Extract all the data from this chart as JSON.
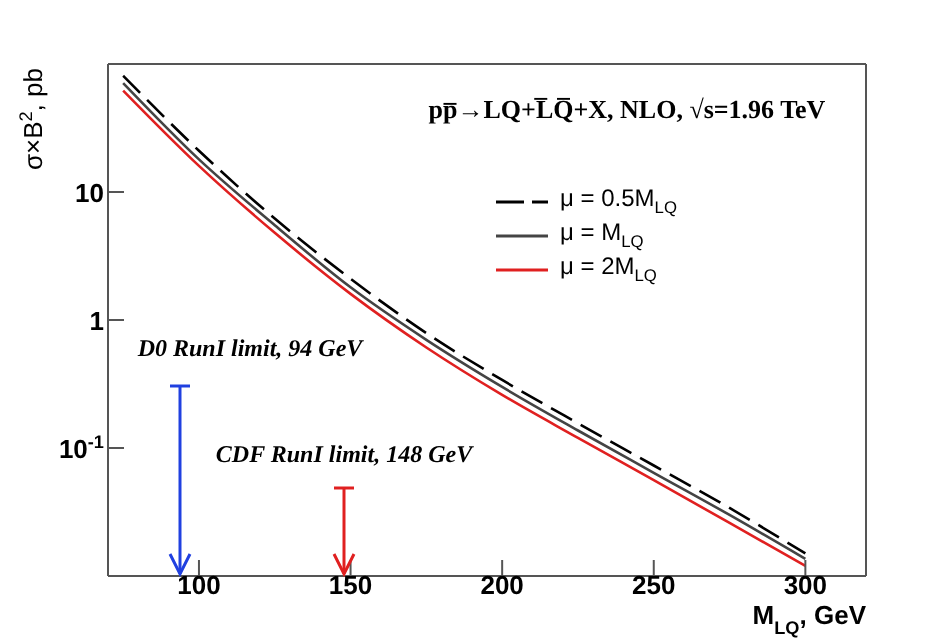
{
  "chart_data": {
    "type": "line",
    "title": "pp̅→LQ+L̅Q̅+X, NLO, √s=1.96 TeV",
    "xlabel": "M$_{LQ}$, GeV",
    "ylabel": "σ×B$^{2}$, pb",
    "x": [
      75,
      100,
      125,
      150,
      175,
      200,
      225,
      250,
      275,
      300
    ],
    "series": [
      {
        "name": "μ = 0.5M$_{LQ}$",
        "color": "#000000",
        "line_style": "dashed",
        "values": [
          81,
          21,
          6.2,
          2.1,
          0.79,
          0.34,
          0.156,
          0.073,
          0.034,
          0.015
        ]
      },
      {
        "name": "μ = M$_{LQ}$",
        "color": "#444444",
        "values": [
          71,
          18,
          5.5,
          1.8,
          0.7,
          0.3,
          0.137,
          0.064,
          0.03,
          0.0136
        ]
      },
      {
        "name": "μ = 2M$_{LQ}$",
        "color": "#e02020",
        "values": [
          62,
          16,
          4.8,
          1.6,
          0.61,
          0.26,
          0.12,
          0.056,
          0.026,
          0.012
        ]
      }
    ],
    "annotations": [
      "D0 RunI limit, 94 GeV",
      "CDF RunI limit, 148 GeV"
    ],
    "log": "y",
    "xlim": [
      70,
      320
    ],
    "ylim": [
      0.01,
      100
    ],
    "xticks": [
      100,
      150,
      200,
      250,
      300
    ],
    "yticks": [
      {
        "value": 0.1,
        "label": "10$^{-1}$"
      },
      1,
      10
    ],
    "legend": "top right",
    "grid": false,
    "line_style": "solid",
    "marker": "none"
  }
}
